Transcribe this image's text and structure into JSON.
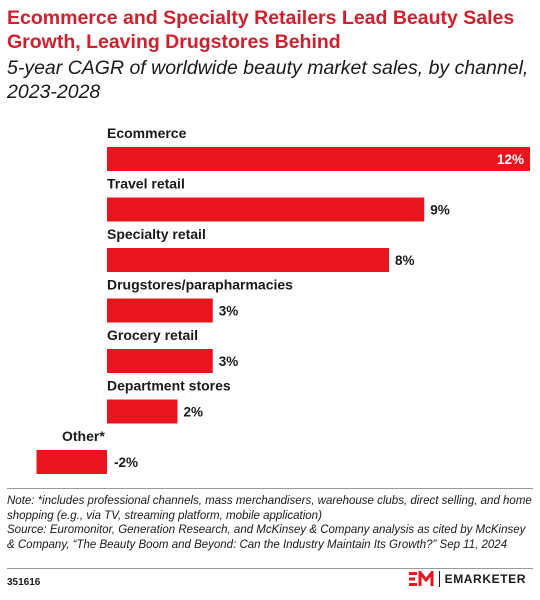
{
  "header": {
    "title": "Ecommerce and Specialty Retailers Lead Beauty Sales Growth, Leaving Drugstores Behind",
    "subtitle": "5-year CAGR of worldwide beauty market sales, by channel, 2023-2028"
  },
  "chart_data": {
    "type": "bar",
    "orientation": "horizontal",
    "categories": [
      "Ecommerce",
      "Travel retail",
      "Specialty retail",
      "Drugstores/parapharmacies",
      "Grocery retail",
      "Department stores",
      "Other*"
    ],
    "values": [
      12,
      9,
      8,
      3,
      3,
      2,
      -2
    ],
    "value_labels": [
      "12%",
      "9%",
      "8%",
      "3%",
      "3%",
      "2%",
      "-2%"
    ],
    "unit": "%",
    "xlim": [
      -2,
      12
    ],
    "bar_color": "#e8141e",
    "grid": false,
    "legend": "none"
  },
  "footer": {
    "note": "Note: *includes professional channels, mass merchandisers, warehouse clubs, direct selling, and home shopping (e.g., via TV, streaming platform, mobile application)",
    "source": "Source: Euromonitor, Generation Research, and McKinsey & Company analysis as cited by McKinsey & Company, “The Beauty Boom and Beyond: Can the Industry Maintain Its Growth?” Sep 11, 2024",
    "chart_id": "351616",
    "brand": "EMARKETER"
  }
}
